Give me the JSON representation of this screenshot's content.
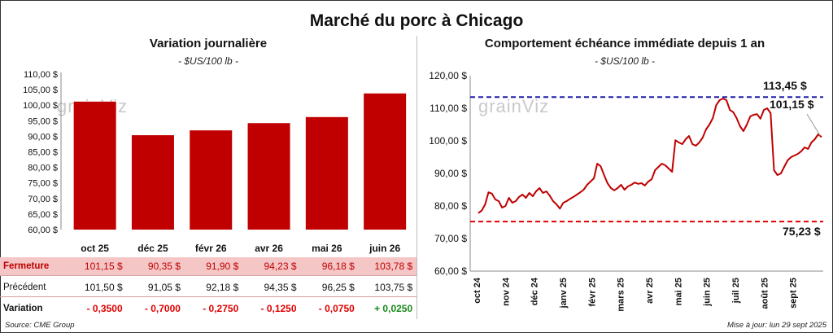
{
  "title": "Marché du porc à Chicago",
  "left": {
    "title": "Variation journalière",
    "unit": "- $US/100 lb -"
  },
  "right": {
    "title": "Comportement échéance immédiate depuis 1 an",
    "unit": "- $US/100 lb -",
    "ref_high_label": "113,45 $",
    "ref_low_label": "75,23 $",
    "last_label": "101,15 $"
  },
  "watermark": "grainViz",
  "table": {
    "row_fermeture": "Fermeture",
    "row_precedent": "Précédent",
    "row_variation": "Variation",
    "fermeture": [
      "101,15 $",
      "90,35 $",
      "91,90 $",
      "94,23 $",
      "96,18 $",
      "103,78 $"
    ],
    "precedent": [
      "101,50 $",
      "91,05 $",
      "92,18 $",
      "94,35 $",
      "96,25 $",
      "103,75 $"
    ],
    "variation": [
      "- 0,3500",
      "- 0,7000",
      "- 0,2750",
      "- 0,1250",
      "- 0,0750",
      "+ 0,0250"
    ]
  },
  "colors": {
    "bar": "#c00000",
    "line": "#c00000",
    "ref_high": "#1f1fa8",
    "ref_low": "#e00000",
    "positive": "#1a8a1a",
    "negative": "#e00000"
  },
  "footer": {
    "source": "Source: CME Group",
    "updated": "Mise à jour: lun 29 sept 2025"
  },
  "chart_data": [
    {
      "type": "bar",
      "categories": [
        "oct 25",
        "déc 25",
        "févr 26",
        "avr 26",
        "mai 26",
        "juin 26"
      ],
      "values": [
        101.15,
        90.35,
        91.9,
        94.23,
        96.18,
        103.78
      ],
      "ylim": [
        60,
        110
      ],
      "yticks": [
        "60,00 $",
        "65,00 $",
        "70,00 $",
        "75,00 $",
        "80,00 $",
        "85,00 $",
        "90,00 $",
        "95,00 $",
        "100,00 $",
        "105,00 $",
        "110,00 $"
      ],
      "grid": false
    },
    {
      "type": "line",
      "ylim": [
        60,
        120
      ],
      "yticks": [
        "60,00 $",
        "70,00 $",
        "80,00 $",
        "90,00 $",
        "100,00 $",
        "110,00 $",
        "120,00 $"
      ],
      "xticks": [
        "oct 24",
        "nov 24",
        "déc 24",
        "janv 25",
        "févr 25",
        "mars 25",
        "avr 25",
        "mai 25",
        "juin 25",
        "juil 25",
        "août 25",
        "sept 25"
      ],
      "ref_lines": [
        113.45,
        75.23
      ],
      "last_value": 101.15,
      "values": [
        77.8,
        78.6,
        80.5,
        84.2,
        83.8,
        82.0,
        81.5,
        79.5,
        80.0,
        82.5,
        81.0,
        81.5,
        82.8,
        83.5,
        82.5,
        84.0,
        83.0,
        84.5,
        85.5,
        84.0,
        84.5,
        83.2,
        81.5,
        80.5,
        79.2,
        81.0,
        81.5,
        82.2,
        82.8,
        83.5,
        84.2,
        85.0,
        86.5,
        87.5,
        88.5,
        93.0,
        92.2,
        89.5,
        87.0,
        85.5,
        84.8,
        85.5,
        86.5,
        85.0,
        86.0,
        86.5,
        87.2,
        86.8,
        87.0,
        86.3,
        87.5,
        88.2,
        91.0,
        92.0,
        93.0,
        92.5,
        91.5,
        90.5,
        100.2,
        99.5,
        99.0,
        100.5,
        101.5,
        99.0,
        98.5,
        99.5,
        101.0,
        103.5,
        105.0,
        107.0,
        111.0,
        112.5,
        113.0,
        112.5,
        109.5,
        108.8,
        107.0,
        104.5,
        103.0,
        105.0,
        107.5,
        108.0,
        108.2,
        106.8,
        109.5,
        110.0,
        108.5,
        91.0,
        89.5,
        90.0,
        92.0,
        94.0,
        95.0,
        95.5,
        96.0,
        96.8,
        98.0,
        97.5,
        99.5,
        100.5,
        102.0,
        101.15
      ]
    }
  ]
}
